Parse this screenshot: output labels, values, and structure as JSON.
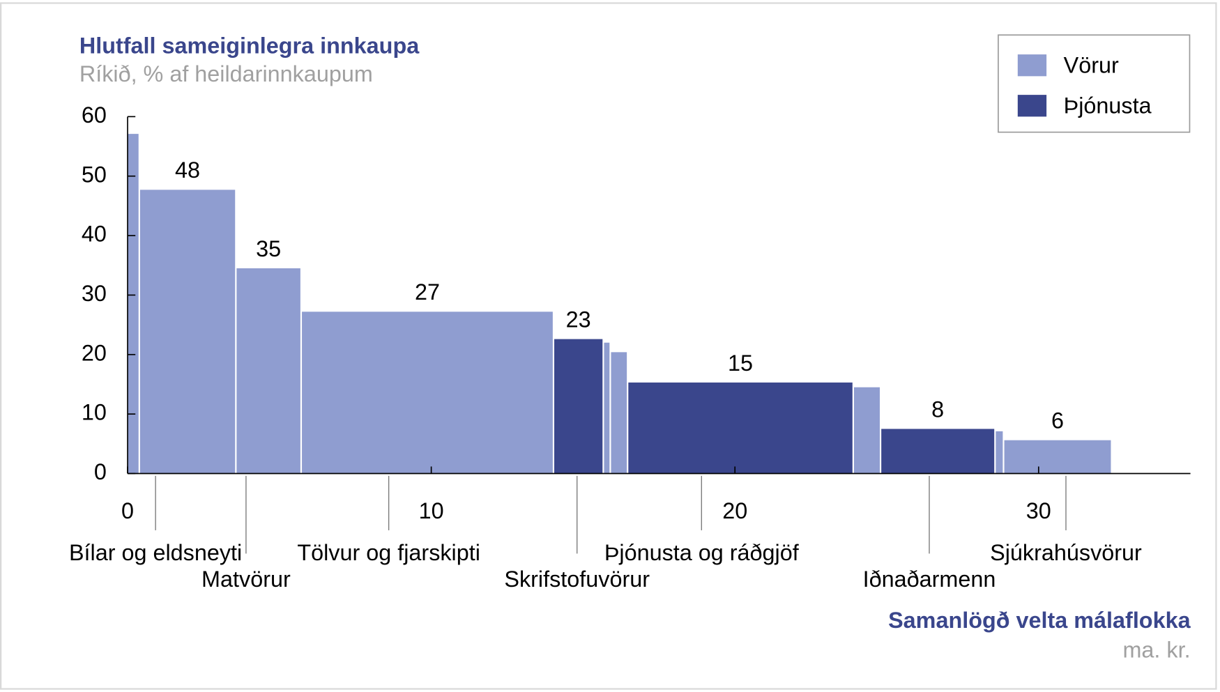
{
  "chart_data": {
    "type": "variable-width-bar",
    "title": "Hlutfall sameiginlegra innkaupa",
    "subtitle": "Ríkið, % af heildarinnkaupum",
    "x_label": "Samanlögð velta málaflokka",
    "x_unit": "ma. kr.",
    "series": [
      {
        "name": "Vörur",
        "color": "#8f9dd0"
      },
      {
        "name": "Þjónusta",
        "color": "#3a468c"
      }
    ],
    "bars": [
      {
        "x0": 0,
        "x1": 0.36,
        "value": 57.1,
        "series": 0
      },
      {
        "x0": 0.41,
        "x1": 3.54,
        "value": 47.7,
        "series": 0,
        "label": "48"
      },
      {
        "x0": 3.59,
        "x1": 5.69,
        "value": 34.5,
        "series": 0,
        "label": "35"
      },
      {
        "x0": 5.74,
        "x1": 14.0,
        "value": 27.2,
        "series": 0,
        "label": "27"
      },
      {
        "x0": 14.05,
        "x1": 15.64,
        "value": 22.6,
        "series": 1,
        "label": "23"
      },
      {
        "x0": 15.69,
        "x1": 15.87,
        "value": 22.0,
        "series": 0
      },
      {
        "x0": 15.92,
        "x1": 16.44,
        "value": 20.4,
        "series": 0
      },
      {
        "x0": 16.49,
        "x1": 23.87,
        "value": 15.3,
        "series": 1,
        "label": "15"
      },
      {
        "x0": 23.92,
        "x1": 24.77,
        "value": 14.5,
        "series": 0
      },
      {
        "x0": 24.82,
        "x1": 28.54,
        "value": 7.5,
        "series": 1,
        "label": "8"
      },
      {
        "x0": 28.59,
        "x1": 28.82,
        "value": 7.1,
        "series": 0
      },
      {
        "x0": 28.87,
        "x1": 32.38,
        "value": 5.6,
        "series": 0,
        "label": "6"
      }
    ],
    "categories": [
      {
        "label": "Bílar og eldsneyti",
        "x": 0.92
      },
      {
        "label": "Matvörur",
        "x": 3.9
      },
      {
        "label": "Tölvur og fjarskipti",
        "x": 8.6
      },
      {
        "label": "Skrifstofuvörur",
        "x": 14.8
      },
      {
        "label": "Þjónusta og ráðgjöf",
        "x": 18.9
      },
      {
        "label": "Iðnaðarmenn",
        "x": 26.4
      },
      {
        "label": "Sjúkrahúsvörur",
        "x": 30.9
      }
    ],
    "xlim": [
      0,
      35
    ],
    "xticks": [
      0,
      10,
      20,
      30
    ],
    "ylim": [
      0,
      60
    ],
    "yticks": [
      0,
      10,
      20,
      30,
      40,
      50,
      60
    ],
    "legend": "top-right"
  }
}
